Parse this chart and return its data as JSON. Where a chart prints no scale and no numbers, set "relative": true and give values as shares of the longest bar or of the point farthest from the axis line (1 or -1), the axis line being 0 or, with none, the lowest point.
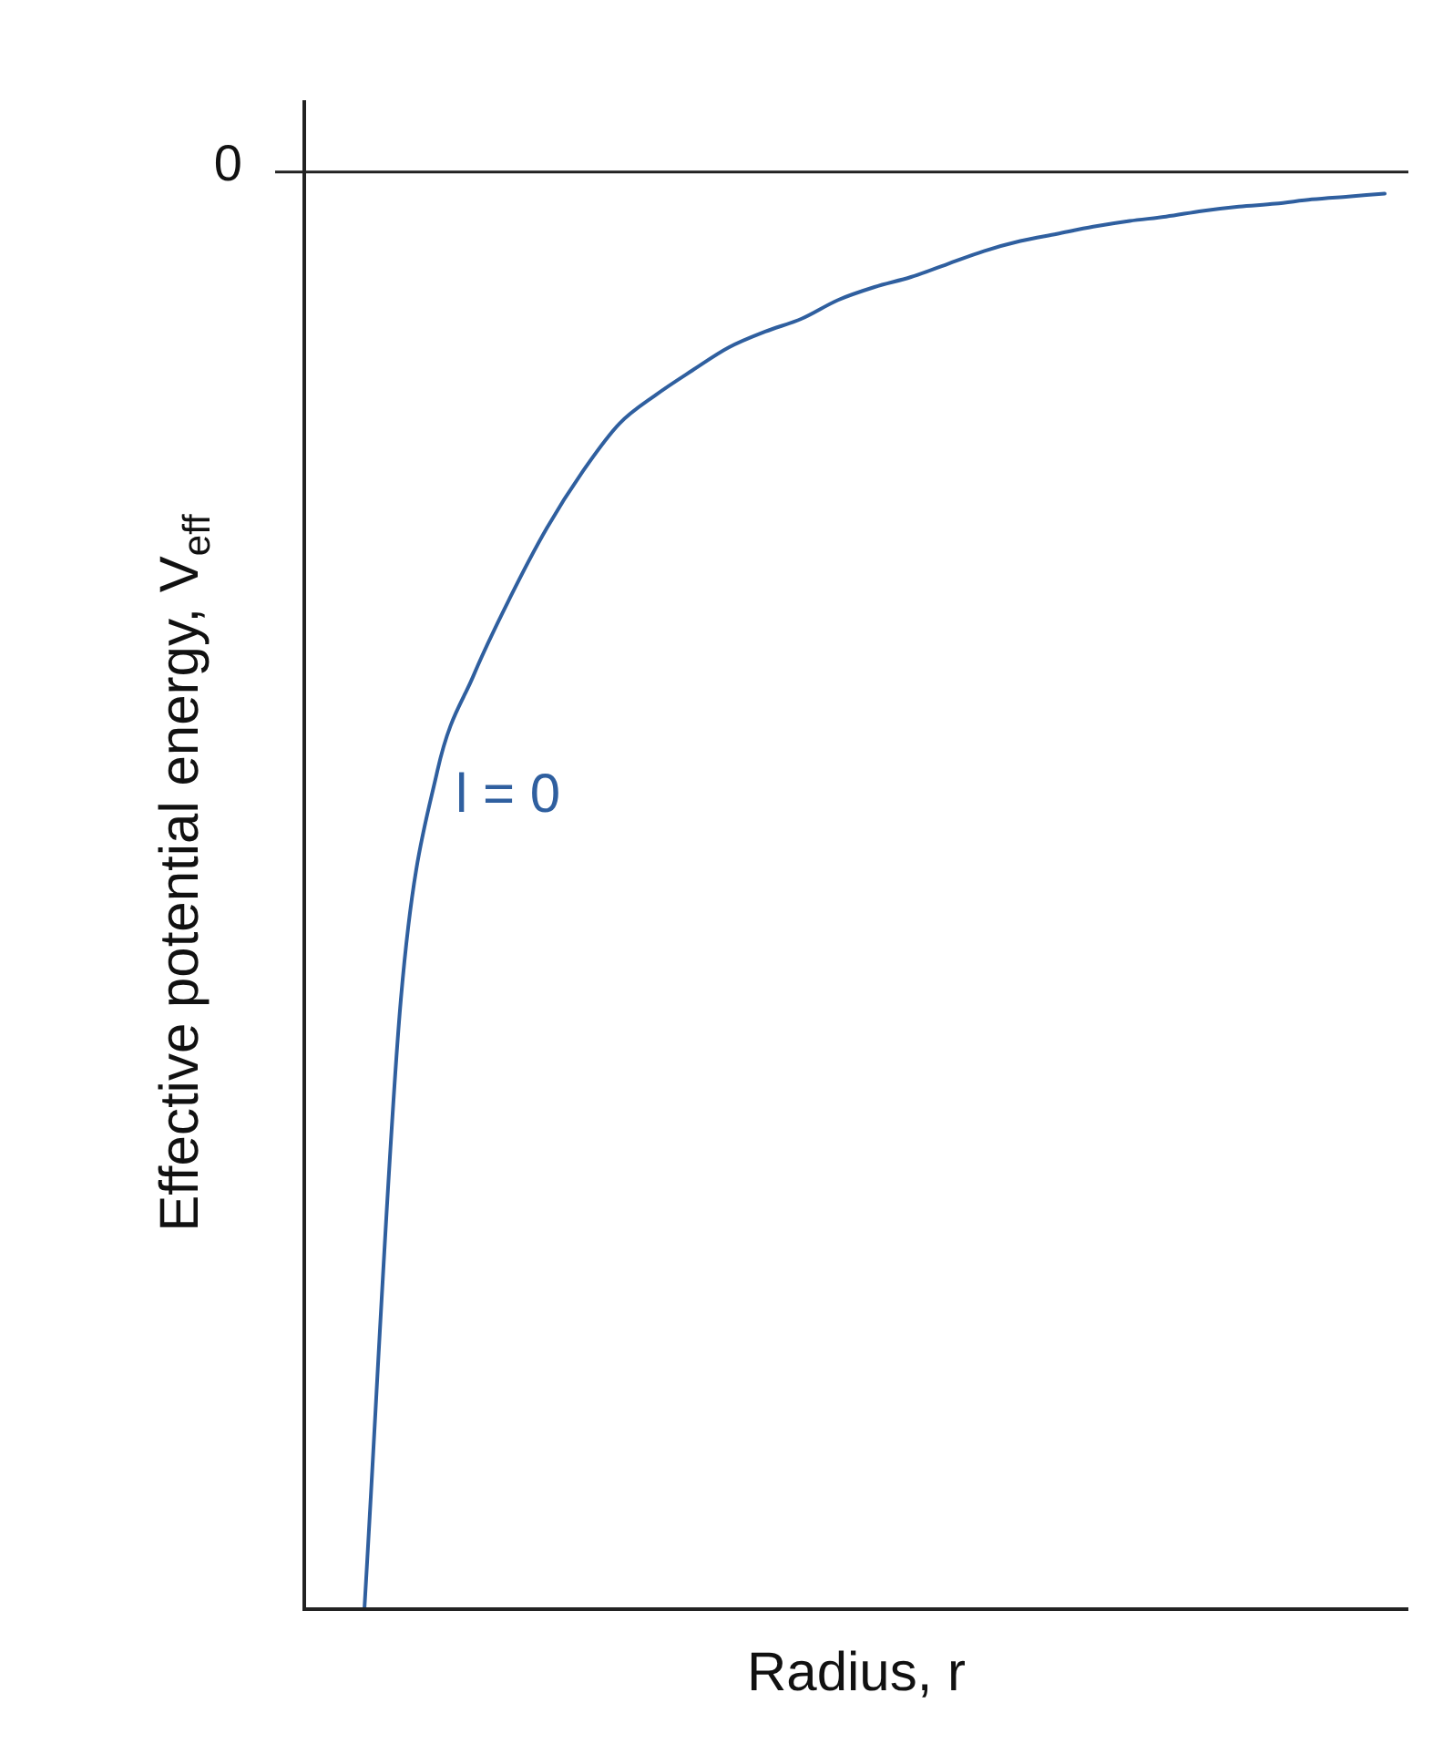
{
  "chart_data": {
    "type": "line",
    "relative": true,
    "xlabel": "Radius, r",
    "ylabel": "Effective potential energy, V$_{eff}$",
    "categories": [
      null,
      null,
      null,
      null,
      null,
      null,
      null,
      null,
      null,
      null,
      null,
      null,
      null,
      null,
      null,
      null,
      null,
      null,
      null,
      null,
      null,
      null,
      null,
      null,
      null,
      null,
      null,
      null,
      null
    ],
    "series": [
      {
        "name": "l = 0",
        "color": "#2f5f9f",
        "values": [
          -1,
          -0.576,
          -0.417,
          -0.35,
          -0.296,
          -0.248,
          -0.208,
          -0.175,
          -0.155,
          -0.138,
          -0.122,
          -0.111,
          -0.102,
          -0.089,
          -0.08,
          -0.073,
          -0.064,
          -0.055,
          -0.048,
          -0.043,
          -0.038,
          -0.034,
          -0.031,
          -0.027,
          -0.024,
          -0.022,
          -0.019,
          -0.017,
          -0.015
        ]
      }
    ],
    "ref_lines": [
      {
        "axis": "y",
        "value": 0,
        "label": "0"
      }
    ],
    "legend": false,
    "marker": "none",
    "line_style": "solid"
  }
}
